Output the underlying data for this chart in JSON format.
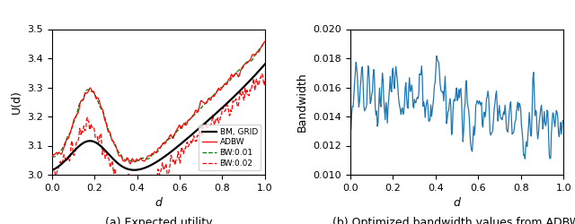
{
  "n_points": 300,
  "left_title": "(a) Expected utility",
  "right_title": "(b) Optimized bandwidth values from ADBW",
  "left_ylabel": "U(d)",
  "right_ylabel": "Bandwidth",
  "xlabel": "d",
  "left_ylim": [
    3.0,
    3.5
  ],
  "right_ylim": [
    0.01,
    0.02
  ],
  "left_yticks": [
    3.0,
    3.1,
    3.2,
    3.3,
    3.4,
    3.5
  ],
  "right_yticks": [
    0.01,
    0.012,
    0.014,
    0.016,
    0.018,
    0.02
  ],
  "xlim": [
    0.0,
    1.0
  ],
  "legend_labels": [
    "BM, GRID",
    "ADBW",
    "BW:0.01",
    "BW:0.02"
  ],
  "legend_colors": [
    "black",
    "red",
    "green",
    "red"
  ],
  "legend_styles": [
    "-",
    "-",
    "--",
    "--"
  ],
  "bw_color": "#1f77b4",
  "figsize": [
    6.4,
    2.5
  ],
  "dpi": 100
}
